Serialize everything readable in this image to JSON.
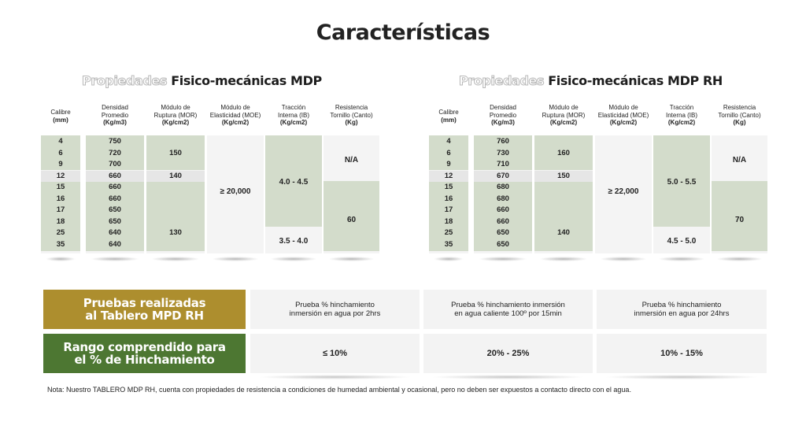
{
  "title": "Características",
  "panels": [
    {
      "title_outline": "Propiedades",
      "title_strong": "Fisico-mecánicas MDP",
      "headers": [
        {
          "line1": "Calibre",
          "line2": "",
          "unit": "(mm)"
        },
        {
          "line1": "Densidad",
          "line2": "Promedio",
          "unit": "(Kg/m3)"
        },
        {
          "line1": "Módulo de",
          "line2": "Ruptura (MOR)",
          "unit": "(Kg/cm2)"
        },
        {
          "line1": "Módulo de",
          "line2": "Elasticidad (MOE)",
          "unit": "(Kg/cm2)"
        },
        {
          "line1": "Tracción",
          "line2": "Interna (IB)",
          "unit": "(Kg/cm2)"
        },
        {
          "line1": "Resistencia",
          "line2": "Tornillo (Canto)",
          "unit": "(Kg)"
        }
      ],
      "calibre": [
        "4",
        "6",
        "9",
        "12",
        "15",
        "16",
        "17",
        "18",
        "25",
        "35"
      ],
      "densidad": [
        "750",
        "720",
        "700",
        "660",
        "660",
        "660",
        "650",
        "650",
        "640",
        "640"
      ],
      "mor": [
        "150",
        "140",
        "130"
      ],
      "moe": "≥ 20,000",
      "ib": [
        "4.0 - 4.5",
        "3.5 - 4.0"
      ],
      "tornillo": [
        "N/A",
        "60"
      ]
    },
    {
      "title_outline": "Propiedades",
      "title_strong": "Fisico-mecánicas MDP RH",
      "headers": [
        {
          "line1": "Calibre",
          "line2": "",
          "unit": "(mm)"
        },
        {
          "line1": "Densidad",
          "line2": "Promedio",
          "unit": "(Kg/m3)"
        },
        {
          "line1": "Módulo de",
          "line2": "Ruptura (MOR)",
          "unit": "(Kg/cm2)"
        },
        {
          "line1": "Módulo de",
          "line2": "Elasticidad (MOE)",
          "unit": "(Kg/cm2)"
        },
        {
          "line1": "Tracción",
          "line2": "Interna (IB)",
          "unit": "(Kg/cm2)"
        },
        {
          "line1": "Resistencia",
          "line2": "Tornillo (Canto)",
          "unit": "(Kg)"
        }
      ],
      "calibre": [
        "4",
        "6",
        "9",
        "12",
        "15",
        "16",
        "17",
        "18",
        "25",
        "35"
      ],
      "densidad": [
        "760",
        "730",
        "710",
        "670",
        "680",
        "680",
        "660",
        "660",
        "650",
        "650"
      ],
      "mor": [
        "160",
        "150",
        "140"
      ],
      "moe": "≥ 22,000",
      "ib": [
        "5.0 - 5.5",
        "4.5 - 5.0"
      ],
      "tornillo": [
        "N/A",
        "70"
      ]
    }
  ],
  "tests": {
    "label_line1": "Pruebas realizadas",
    "label_line2": "al Tablero MPD RH",
    "cells": [
      {
        "line1": "Prueba % hinchamiento",
        "line2": "inmersión en agua por 2hrs"
      },
      {
        "line1": "Prueba % hinchamiento inmersión",
        "line2": "en agua caliente 100º por 15min"
      },
      {
        "line1": "Prueba % hinchamiento",
        "line2": "inmersión en agua por 24hrs"
      }
    ]
  },
  "ranges": {
    "label_line1": "Rango comprendido para",
    "label_line2": "el % de Hinchamiento",
    "cells": [
      "≤ 10%",
      "20% - 25%",
      "10% - 15%"
    ]
  },
  "note": "Nota: Nuestro TABLERO MDP RH, cuenta con propiedades de resistencia a condiciones de humedad ambiental y ocasional, pero no deben ser expuestos a contacto directo con el agua.",
  "colors": {
    "olive": "#ad8e2e",
    "green": "#4d7732",
    "sage": "#d3dccb",
    "cell_bg": "#f3f3f3"
  }
}
